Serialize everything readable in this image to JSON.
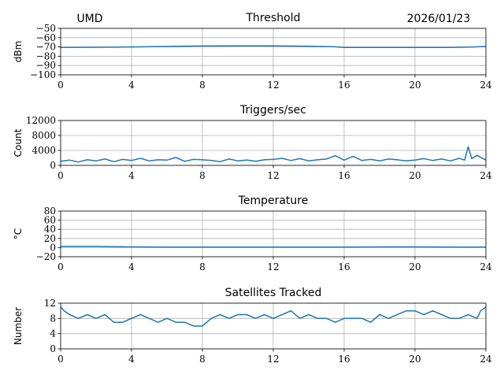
{
  "header": {
    "site": "UMD",
    "date": "2026/01/23"
  },
  "colors": {
    "series": "#1f77b4",
    "grid": "#b0b0b0"
  },
  "chart_data": [
    {
      "type": "line",
      "title": "Threshold",
      "xlabel": "",
      "ylabel": "dBm",
      "xlim": [
        0,
        24
      ],
      "ylim": [
        -100,
        -50
      ],
      "xticks": [
        0,
        4,
        8,
        12,
        16,
        20,
        24
      ],
      "yticks": [
        -50,
        -60,
        -70,
        -80,
        -90,
        -100
      ],
      "ytick_labels": [
        "−50",
        "−60",
        "−70",
        "−80",
        "−90",
        "−100"
      ],
      "grid": true,
      "series": [
        {
          "x": [
            0,
            2,
            4,
            6,
            8,
            10,
            12,
            14,
            15.5,
            16,
            18,
            20,
            22,
            23.3,
            24
          ],
          "y": [
            -70.5,
            -70.3,
            -70,
            -69.5,
            -69,
            -68.8,
            -68.8,
            -69.2,
            -69.8,
            -70.5,
            -70.5,
            -70.6,
            -70.5,
            -70,
            -69.5
          ]
        }
      ]
    },
    {
      "type": "line",
      "title": "Triggers/sec",
      "xlabel": "",
      "ylabel": "Count",
      "xlim": [
        0,
        24
      ],
      "ylim": [
        0,
        12000
      ],
      "xticks": [
        0,
        4,
        8,
        12,
        16,
        20,
        24
      ],
      "yticks": [
        0,
        4000,
        8000,
        12000
      ],
      "ytick_labels": [
        "0",
        "4000",
        "8000",
        "12000"
      ],
      "grid": true,
      "series": [
        {
          "x": [
            0,
            0.5,
            1,
            1.5,
            2,
            2.5,
            3,
            3.5,
            4,
            4.5,
            5,
            5.5,
            6,
            6.5,
            7,
            7.5,
            8,
            8.5,
            9,
            9.5,
            10,
            10.5,
            11,
            11.5,
            12,
            12.5,
            13,
            13.5,
            14,
            14.5,
            15,
            15.5,
            16,
            16.5,
            17,
            17.5,
            18,
            18.5,
            19,
            19.5,
            20,
            20.5,
            21,
            21.5,
            22,
            22.5,
            22.8,
            23,
            23.2,
            23.5,
            24
          ],
          "y": [
            1100,
            1400,
            900,
            1500,
            1200,
            1700,
            1000,
            1600,
            1300,
            1900,
            1200,
            1500,
            1400,
            2100,
            1100,
            1600,
            1500,
            1300,
            1000,
            1700,
            1200,
            1400,
            1100,
            1500,
            1600,
            1900,
            1300,
            1800,
            1200,
            1500,
            1700,
            2600,
            1400,
            2400,
            1300,
            1600,
            1200,
            1700,
            1500,
            1200,
            1400,
            1800,
            1300,
            1700,
            1200,
            1900,
            1400,
            5000,
            1800,
            2700,
            1400
          ]
        }
      ]
    },
    {
      "type": "line",
      "title": "Temperature",
      "xlabel": "",
      "ylabel": "°C",
      "xlim": [
        0,
        24
      ],
      "ylim": [
        -20,
        80
      ],
      "xticks": [
        0,
        4,
        8,
        12,
        16,
        20,
        24
      ],
      "yticks": [
        -20,
        0,
        20,
        40,
        60,
        80
      ],
      "ytick_labels": [
        "−20",
        "0",
        "20",
        "40",
        "60",
        "80"
      ],
      "grid": true,
      "series": [
        {
          "x": [
            0,
            2,
            4,
            6,
            8,
            12,
            16,
            18.5,
            20,
            22.5,
            24
          ],
          "y": [
            2.5,
            2.5,
            1.5,
            1.2,
            1,
            1,
            1,
            1.5,
            1.5,
            1,
            1
          ]
        }
      ]
    },
    {
      "type": "line",
      "title": "Satellites Tracked",
      "xlabel": "",
      "ylabel": "Number",
      "xlim": [
        0,
        24
      ],
      "ylim": [
        0,
        12
      ],
      "xticks": [
        0,
        4,
        8,
        12,
        16,
        20,
        24
      ],
      "yticks": [
        0,
        4,
        8,
        12
      ],
      "ytick_labels": [
        "0",
        "4",
        "8",
        "12"
      ],
      "grid": true,
      "series": [
        {
          "x": [
            0,
            0.2,
            0.5,
            1,
            1.5,
            2,
            2.5,
            3,
            3.5,
            4,
            4.5,
            5,
            5.5,
            6,
            6.5,
            7,
            7.5,
            8,
            8.5,
            9,
            9.5,
            10,
            10.5,
            11,
            11.5,
            12,
            12.5,
            13,
            13.5,
            14,
            14.5,
            15,
            15.5,
            16,
            16.5,
            17,
            17.5,
            18,
            18.5,
            19,
            19.5,
            20,
            20.5,
            21,
            21.5,
            22,
            22.5,
            23,
            23.5,
            23.7,
            24
          ],
          "y": [
            11,
            10,
            9,
            8,
            9,
            8,
            9,
            7,
            7,
            8,
            9,
            8,
            7,
            8,
            7,
            7,
            6,
            6,
            8,
            9,
            8,
            9,
            9,
            8,
            9,
            8,
            9,
            10,
            8,
            9,
            8,
            8,
            7,
            8,
            8,
            8,
            7,
            9,
            8,
            9,
            10,
            10,
            9,
            10,
            9,
            8,
            8,
            9,
            8,
            10,
            11
          ]
        }
      ]
    }
  ]
}
